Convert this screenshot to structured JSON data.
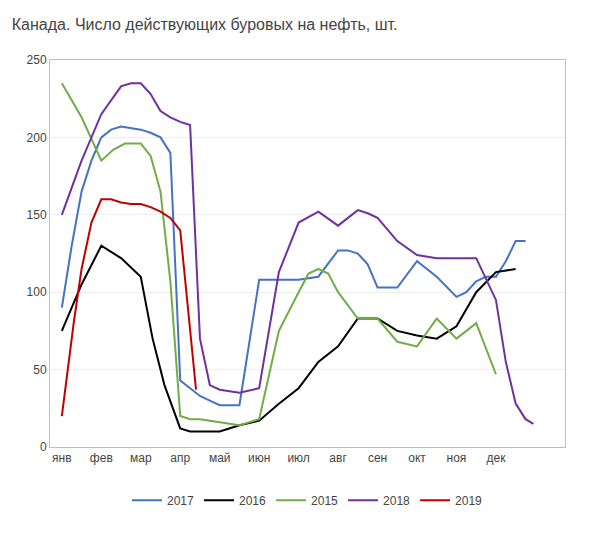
{
  "chart_data": {
    "type": "line",
    "title": "Канада. Число действующих буровых на нефть, шт.",
    "xlim": [
      -0.3,
      12.75
    ],
    "xticks": [
      {
        "value": 0,
        "label": "янв"
      },
      {
        "value": 1,
        "label": "фев"
      },
      {
        "value": 2,
        "label": "мар"
      },
      {
        "value": 3,
        "label": "апр"
      },
      {
        "value": 4,
        "label": "май"
      },
      {
        "value": 5,
        "label": "июн"
      },
      {
        "value": 6,
        "label": "июл"
      },
      {
        "value": 7,
        "label": "авг"
      },
      {
        "value": 8,
        "label": "сен"
      },
      {
        "value": 9,
        "label": "окт"
      },
      {
        "value": 10,
        "label": "ноя"
      },
      {
        "value": 11,
        "label": "дек"
      }
    ],
    "ylim": [
      0,
      250
    ],
    "yticks": [
      0,
      50,
      100,
      150,
      200,
      250
    ],
    "grid": "y",
    "legend": "bottom",
    "series": [
      {
        "name": "2017",
        "color": "#4472C4",
        "x": [
          0,
          0.25,
          0.5,
          0.75,
          1.0,
          1.25,
          1.5,
          1.75,
          2.0,
          2.25,
          2.5,
          2.75,
          3.0,
          3.25,
          3.5,
          3.75,
          4.0,
          4.5,
          5.0,
          5.5,
          6.0,
          6.5,
          7.0,
          7.25,
          7.5,
          7.75,
          8.0,
          8.5,
          9.0,
          9.5,
          10.0,
          10.25,
          10.5,
          10.75,
          11.0,
          11.25,
          11.5,
          11.75
        ],
        "values": [
          90,
          130,
          165,
          185,
          200,
          205,
          207,
          206,
          205,
          203,
          200,
          190,
          43,
          38,
          33,
          30,
          27,
          27,
          108,
          108,
          108,
          110,
          127,
          127,
          125,
          118,
          103,
          103,
          120,
          110,
          97,
          100,
          107,
          110,
          110,
          120,
          133,
          133
        ]
      },
      {
        "name": "2016",
        "color": "#000000",
        "x": [
          0,
          0.5,
          1.0,
          1.5,
          2.0,
          2.3,
          2.6,
          3.0,
          3.25,
          3.5,
          3.75,
          4.0,
          4.5,
          5.0,
          5.5,
          6.0,
          6.5,
          7.0,
          7.5,
          8.0,
          8.5,
          9.0,
          9.5,
          10.0,
          10.5,
          11.0,
          11.5
        ],
        "values": [
          75,
          105,
          130,
          122,
          110,
          70,
          40,
          12,
          10,
          10,
          10,
          10,
          14,
          17,
          28,
          38,
          55,
          65,
          83,
          83,
          75,
          72,
          70,
          78,
          100,
          113,
          115
        ]
      },
      {
        "name": "2015",
        "color": "#70AD47",
        "x": [
          0,
          0.5,
          1.0,
          1.3,
          1.6,
          2.0,
          2.25,
          2.5,
          2.75,
          3.0,
          3.25,
          3.5,
          3.75,
          4.0,
          4.5,
          5.0,
          5.5,
          6.0,
          6.25,
          6.5,
          6.75,
          7.0,
          7.5,
          8.0,
          8.5,
          9.0,
          9.5,
          10.0,
          10.5,
          11.0
        ],
        "values": [
          235,
          213,
          185,
          192,
          196,
          196,
          188,
          165,
          107,
          20,
          18,
          18,
          17,
          16,
          14,
          18,
          75,
          100,
          112,
          115,
          112,
          100,
          83,
          83,
          68,
          65,
          83,
          70,
          80,
          47
        ]
      },
      {
        "name": "2018",
        "color": "#7030A0",
        "x": [
          0,
          0.5,
          1.0,
          1.5,
          1.75,
          2.0,
          2.25,
          2.5,
          2.75,
          3.0,
          3.25,
          3.5,
          3.75,
          4.0,
          4.5,
          5.0,
          5.5,
          6.0,
          6.5,
          7.0,
          7.25,
          7.5,
          7.75,
          8.0,
          8.5,
          9.0,
          9.5,
          10.0,
          10.5,
          11.0,
          11.25,
          11.5,
          11.75,
          11.95
        ],
        "values": [
          150,
          185,
          215,
          233,
          235,
          235,
          228,
          217,
          213,
          210,
          208,
          70,
          40,
          37,
          35,
          38,
          113,
          145,
          152,
          143,
          148,
          153,
          151,
          148,
          133,
          124,
          122,
          122,
          122,
          95,
          55,
          28,
          18,
          15
        ]
      },
      {
        "name": "2019",
        "color": "#C00000",
        "x": [
          0,
          0.15,
          0.3,
          0.5,
          0.75,
          1.0,
          1.25,
          1.5,
          1.75,
          2.0,
          2.25,
          2.5,
          2.75,
          3.0,
          3.2,
          3.4
        ],
        "values": [
          20,
          50,
          80,
          115,
          145,
          160,
          160,
          158,
          157,
          157,
          155,
          152,
          148,
          140,
          90,
          37
        ]
      }
    ]
  }
}
